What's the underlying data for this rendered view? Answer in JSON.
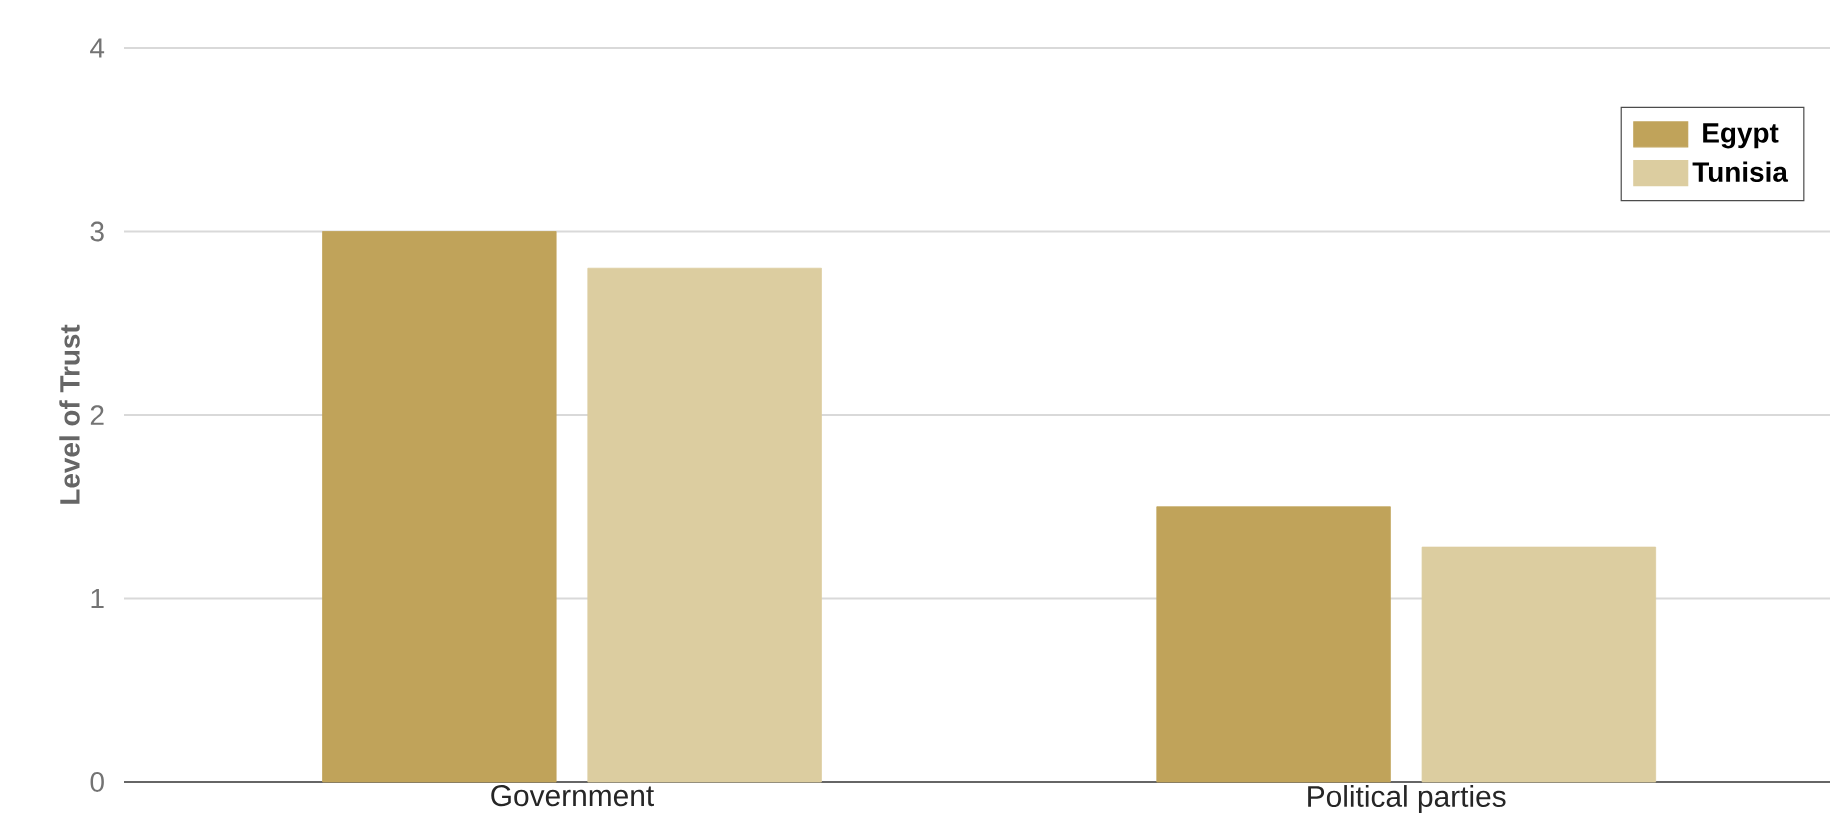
{
  "chart_data": {
    "type": "bar",
    "ylabel": "Level of Trust",
    "categories": [
      "Government",
      "Political parties"
    ],
    "series": [
      {
        "name": "Egypt",
        "color": "#c0a35a",
        "values": [
          3.0,
          1.5
        ]
      },
      {
        "name": "Tunisia",
        "color": "#dccda0",
        "values": [
          2.8,
          1.28
        ]
      }
    ],
    "ylim": [
      0,
      4
    ],
    "yticks": [
      0,
      1,
      2,
      3,
      4
    ],
    "grid": "y",
    "legend": "top right"
  }
}
